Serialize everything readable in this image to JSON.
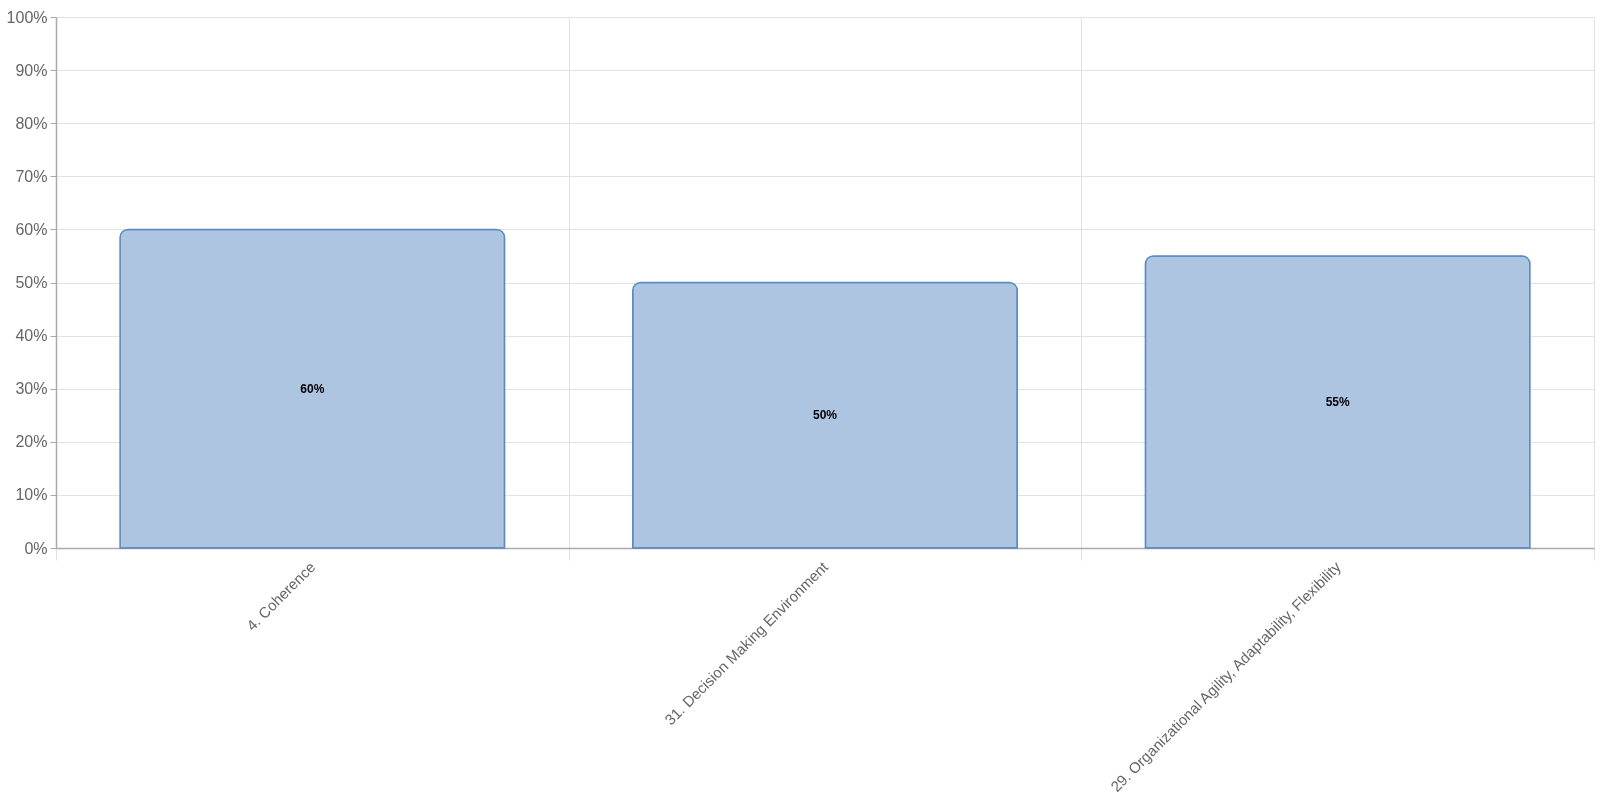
{
  "chart_data": {
    "type": "bar",
    "categories": [
      "4. Coherence",
      "31. Decision Making Environment",
      "29. Organizational Agility, Adaptability, Flexibility"
    ],
    "values": [
      60,
      50,
      55
    ],
    "value_labels": [
      "60%",
      "50%",
      "55%"
    ],
    "color": "#adc5e1",
    "ylim": [
      0,
      100
    ],
    "yticks": [
      {
        "value": 0,
        "label": "0%"
      },
      {
        "value": 10,
        "label": "10%"
      },
      {
        "value": 20,
        "label": "20%"
      },
      {
        "value": 30,
        "label": "30%"
      },
      {
        "value": 40,
        "label": "40%"
      },
      {
        "value": 50,
        "label": "50%"
      },
      {
        "value": 60,
        "label": "60%"
      },
      {
        "value": 70,
        "label": "70%"
      },
      {
        "value": 80,
        "label": "80%"
      },
      {
        "value": 90,
        "label": "90%"
      },
      {
        "value": 100,
        "label": "100%"
      }
    ],
    "grid": true
  }
}
